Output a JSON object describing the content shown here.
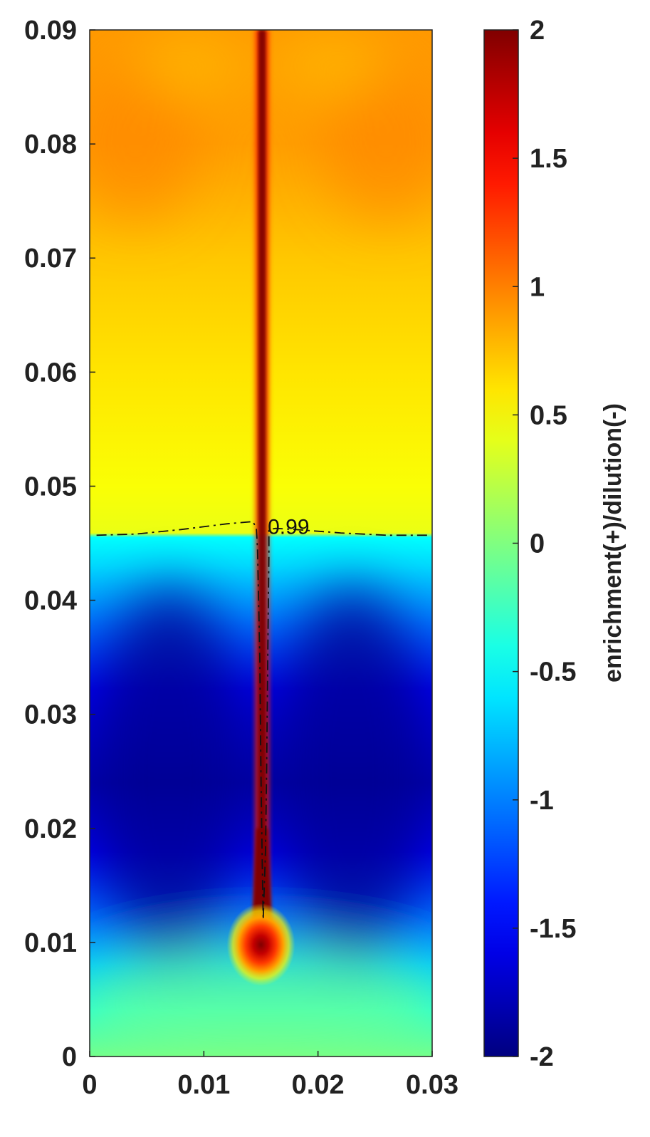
{
  "chart_data": {
    "type": "heatmap",
    "title": "",
    "xlabel": "",
    "ylabel": "",
    "xlim": [
      0,
      0.03
    ],
    "ylim": [
      0,
      0.09
    ],
    "x_ticks": [
      "0",
      "0.01",
      "0.02",
      "0.03"
    ],
    "y_ticks": [
      "0",
      "0.01",
      "0.02",
      "0.03",
      "0.04",
      "0.05",
      "0.06",
      "0.07",
      "0.08",
      "0.09"
    ],
    "colorbar": {
      "label": "enrichment(+)/dilution(-)",
      "range": [
        -2,
        2
      ],
      "ticks": [
        "-2",
        "-1.5",
        "-1",
        "-0.5",
        "0",
        "0.5",
        "1",
        "1.5",
        "2"
      ],
      "colormap": "jet"
    },
    "contour": {
      "label": "0.99",
      "style": "dash-dot",
      "points": [
        [
          0.0006,
          0.0457
        ],
        [
          0.004,
          0.0458
        ],
        [
          0.008,
          0.0462
        ],
        [
          0.012,
          0.0467
        ],
        [
          0.0143,
          0.0469
        ],
        [
          0.0146,
          0.0463
        ],
        [
          0.0147,
          0.0445
        ],
        [
          0.0149,
          0.035
        ],
        [
          0.015,
          0.025
        ],
        [
          0.0151,
          0.018
        ],
        [
          0.0152,
          0.012
        ],
        [
          0.0154,
          0.018
        ],
        [
          0.0155,
          0.025
        ],
        [
          0.0156,
          0.035
        ],
        [
          0.0157,
          0.044
        ],
        [
          0.0157,
          0.0462
        ],
        [
          0.0163,
          0.0463
        ],
        [
          0.018,
          0.0462
        ],
        [
          0.022,
          0.0459
        ],
        [
          0.026,
          0.0457
        ],
        [
          0.0298,
          0.0457
        ]
      ]
    },
    "field_features": {
      "upper_region_value": 0.9,
      "lower_region_value": -1.8,
      "plume_center_x": 0.0151,
      "plume_value": 2,
      "source_point": [
        0.015,
        0.0103
      ],
      "interface_y": 0.0457
    }
  }
}
